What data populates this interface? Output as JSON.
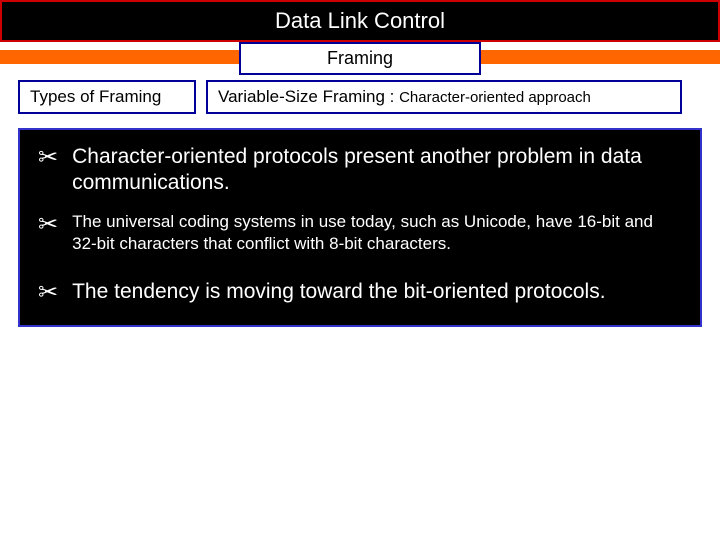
{
  "title": "Data Link Control",
  "subtitle": "Framing",
  "labels": {
    "left": "Types of  Framing",
    "right_main": "Variable-Size Framing : ",
    "right_sub": "Character-oriented approach"
  },
  "bullets": [
    {
      "size": "large",
      "text": "Character-oriented protocols present another problem in data communications."
    },
    {
      "size": "small",
      "text": "The universal coding systems in use today, such as Unicode, have 16-bit and 32-bit characters that conflict with 8-bit characters."
    },
    {
      "size": "large",
      "text": "The tendency is moving toward the bit-oriented protocols.",
      "spacer_before": true
    }
  ],
  "colors": {
    "title_border": "#cc0000",
    "box_border": "#000099",
    "content_border": "#3333cc",
    "stripe": "#ff6600",
    "black": "#000000",
    "white": "#ffffff"
  }
}
